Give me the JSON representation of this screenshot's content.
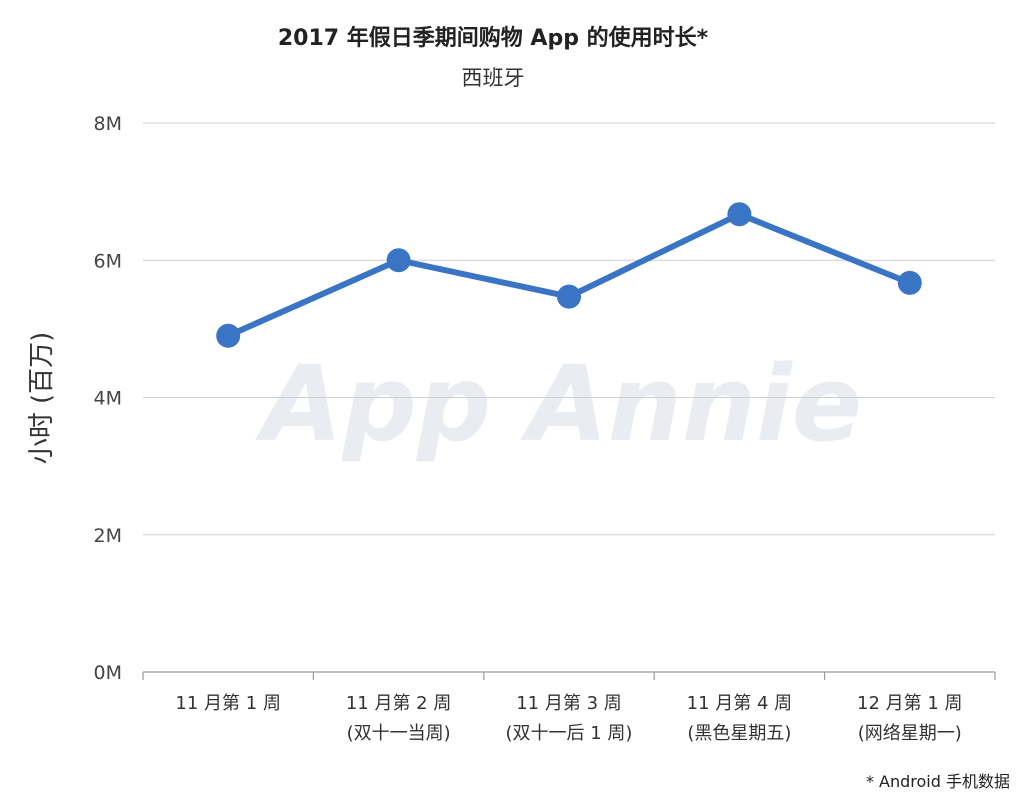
{
  "watermark": "App Annie",
  "footnote": "* Android 手机数据",
  "chart_data": {
    "type": "line",
    "title": "2017 年假日季期间购物 App 的使用时长*",
    "subtitle": "西班牙",
    "ylabel": "小时 (百万)",
    "xlabel": "",
    "ylim": [
      0,
      8
    ],
    "yticks": [
      0,
      2,
      4,
      6,
      8
    ],
    "ytick_labels": [
      "0M",
      "2M",
      "4M",
      "6M",
      "8M"
    ],
    "grid": true,
    "categories": [
      [
        "11 月第 1 周"
      ],
      [
        "11 月第 2 周",
        "(双十一当周)"
      ],
      [
        "11 月第 3 周",
        "(双十一后 1 周)"
      ],
      [
        "11 月第 4 周",
        "(黑色星期五)"
      ],
      [
        "12 月第 1 周",
        "(网络星期一)"
      ]
    ],
    "series": [
      {
        "values": [
          4.9,
          6.0,
          5.47,
          6.67,
          5.67
        ]
      }
    ],
    "color": "#3a74c5"
  }
}
